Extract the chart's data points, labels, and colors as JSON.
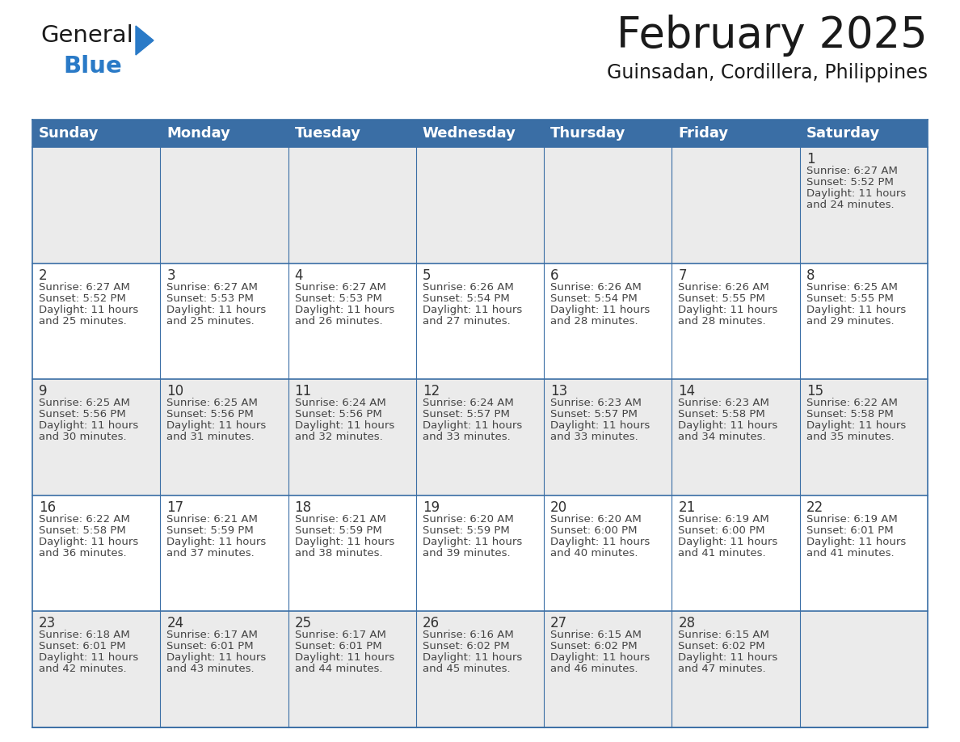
{
  "title": "February 2025",
  "subtitle": "Guinsadan, Cordillera, Philippines",
  "header_color": "#3a6ea5",
  "header_text_color": "#ffffff",
  "day_names": [
    "Sunday",
    "Monday",
    "Tuesday",
    "Wednesday",
    "Thursday",
    "Friday",
    "Saturday"
  ],
  "background_color": "#ffffff",
  "cell_bg_even": "#ebebeb",
  "cell_bg_odd": "#ffffff",
  "grid_color": "#3a6ea5",
  "title_fontsize": 38,
  "subtitle_fontsize": 17,
  "day_header_fontsize": 13,
  "date_fontsize": 12,
  "info_fontsize": 9.5,
  "logo_text1": "General",
  "logo_text2": "Blue",
  "logo_color1": "#1a1a1a",
  "logo_color2": "#2a7ac7",
  "logo_triangle_color": "#2a7ac7",
  "weeks": [
    [
      {
        "day": null,
        "info": ""
      },
      {
        "day": null,
        "info": ""
      },
      {
        "day": null,
        "info": ""
      },
      {
        "day": null,
        "info": ""
      },
      {
        "day": null,
        "info": ""
      },
      {
        "day": null,
        "info": ""
      },
      {
        "day": 1,
        "info": "Sunrise: 6:27 AM\nSunset: 5:52 PM\nDaylight: 11 hours\nand 24 minutes."
      }
    ],
    [
      {
        "day": 2,
        "info": "Sunrise: 6:27 AM\nSunset: 5:52 PM\nDaylight: 11 hours\nand 25 minutes."
      },
      {
        "day": 3,
        "info": "Sunrise: 6:27 AM\nSunset: 5:53 PM\nDaylight: 11 hours\nand 25 minutes."
      },
      {
        "day": 4,
        "info": "Sunrise: 6:27 AM\nSunset: 5:53 PM\nDaylight: 11 hours\nand 26 minutes."
      },
      {
        "day": 5,
        "info": "Sunrise: 6:26 AM\nSunset: 5:54 PM\nDaylight: 11 hours\nand 27 minutes."
      },
      {
        "day": 6,
        "info": "Sunrise: 6:26 AM\nSunset: 5:54 PM\nDaylight: 11 hours\nand 28 minutes."
      },
      {
        "day": 7,
        "info": "Sunrise: 6:26 AM\nSunset: 5:55 PM\nDaylight: 11 hours\nand 28 minutes."
      },
      {
        "day": 8,
        "info": "Sunrise: 6:25 AM\nSunset: 5:55 PM\nDaylight: 11 hours\nand 29 minutes."
      }
    ],
    [
      {
        "day": 9,
        "info": "Sunrise: 6:25 AM\nSunset: 5:56 PM\nDaylight: 11 hours\nand 30 minutes."
      },
      {
        "day": 10,
        "info": "Sunrise: 6:25 AM\nSunset: 5:56 PM\nDaylight: 11 hours\nand 31 minutes."
      },
      {
        "day": 11,
        "info": "Sunrise: 6:24 AM\nSunset: 5:56 PM\nDaylight: 11 hours\nand 32 minutes."
      },
      {
        "day": 12,
        "info": "Sunrise: 6:24 AM\nSunset: 5:57 PM\nDaylight: 11 hours\nand 33 minutes."
      },
      {
        "day": 13,
        "info": "Sunrise: 6:23 AM\nSunset: 5:57 PM\nDaylight: 11 hours\nand 33 minutes."
      },
      {
        "day": 14,
        "info": "Sunrise: 6:23 AM\nSunset: 5:58 PM\nDaylight: 11 hours\nand 34 minutes."
      },
      {
        "day": 15,
        "info": "Sunrise: 6:22 AM\nSunset: 5:58 PM\nDaylight: 11 hours\nand 35 minutes."
      }
    ],
    [
      {
        "day": 16,
        "info": "Sunrise: 6:22 AM\nSunset: 5:58 PM\nDaylight: 11 hours\nand 36 minutes."
      },
      {
        "day": 17,
        "info": "Sunrise: 6:21 AM\nSunset: 5:59 PM\nDaylight: 11 hours\nand 37 minutes."
      },
      {
        "day": 18,
        "info": "Sunrise: 6:21 AM\nSunset: 5:59 PM\nDaylight: 11 hours\nand 38 minutes."
      },
      {
        "day": 19,
        "info": "Sunrise: 6:20 AM\nSunset: 5:59 PM\nDaylight: 11 hours\nand 39 minutes."
      },
      {
        "day": 20,
        "info": "Sunrise: 6:20 AM\nSunset: 6:00 PM\nDaylight: 11 hours\nand 40 minutes."
      },
      {
        "day": 21,
        "info": "Sunrise: 6:19 AM\nSunset: 6:00 PM\nDaylight: 11 hours\nand 41 minutes."
      },
      {
        "day": 22,
        "info": "Sunrise: 6:19 AM\nSunset: 6:01 PM\nDaylight: 11 hours\nand 41 minutes."
      }
    ],
    [
      {
        "day": 23,
        "info": "Sunrise: 6:18 AM\nSunset: 6:01 PM\nDaylight: 11 hours\nand 42 minutes."
      },
      {
        "day": 24,
        "info": "Sunrise: 6:17 AM\nSunset: 6:01 PM\nDaylight: 11 hours\nand 43 minutes."
      },
      {
        "day": 25,
        "info": "Sunrise: 6:17 AM\nSunset: 6:01 PM\nDaylight: 11 hours\nand 44 minutes."
      },
      {
        "day": 26,
        "info": "Sunrise: 6:16 AM\nSunset: 6:02 PM\nDaylight: 11 hours\nand 45 minutes."
      },
      {
        "day": 27,
        "info": "Sunrise: 6:15 AM\nSunset: 6:02 PM\nDaylight: 11 hours\nand 46 minutes."
      },
      {
        "day": 28,
        "info": "Sunrise: 6:15 AM\nSunset: 6:02 PM\nDaylight: 11 hours\nand 47 minutes."
      },
      {
        "day": null,
        "info": ""
      }
    ]
  ]
}
